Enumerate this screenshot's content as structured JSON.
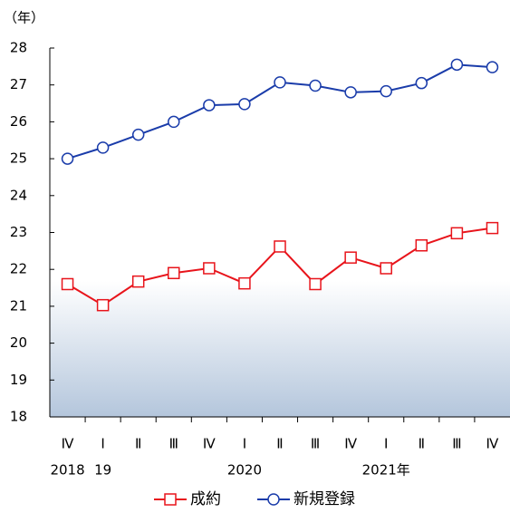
{
  "chart_data": {
    "type": "line",
    "y_axis_label": "（年）",
    "categories": [
      "Ⅳ",
      "Ⅰ",
      "Ⅱ",
      "Ⅲ",
      "Ⅳ",
      "Ⅰ",
      "Ⅱ",
      "Ⅲ",
      "Ⅳ",
      "Ⅰ",
      "Ⅱ",
      "Ⅲ",
      "Ⅳ"
    ],
    "year_labels": [
      "2018",
      "19",
      null,
      null,
      null,
      "2020",
      null,
      null,
      null,
      "2021年",
      null,
      null,
      null
    ],
    "series": [
      {
        "name": "成約",
        "color": "#e8141b",
        "marker": "square",
        "values": [
          21.6,
          21.03,
          21.67,
          21.9,
          22.03,
          21.62,
          22.62,
          21.6,
          22.32,
          22.03,
          22.65,
          22.98,
          23.12
        ]
      },
      {
        "name": "新規登録",
        "color": "#1a3caa",
        "marker": "circle",
        "values": [
          25.0,
          25.3,
          25.65,
          26.0,
          26.45,
          26.48,
          27.07,
          26.98,
          26.8,
          26.83,
          27.05,
          27.55,
          27.48
        ]
      }
    ],
    "ylim": [
      18,
      28
    ],
    "yticks": [
      18,
      19,
      20,
      21,
      22,
      23,
      24,
      25,
      26,
      27,
      28
    ],
    "grid": false,
    "legend": "bottom"
  }
}
